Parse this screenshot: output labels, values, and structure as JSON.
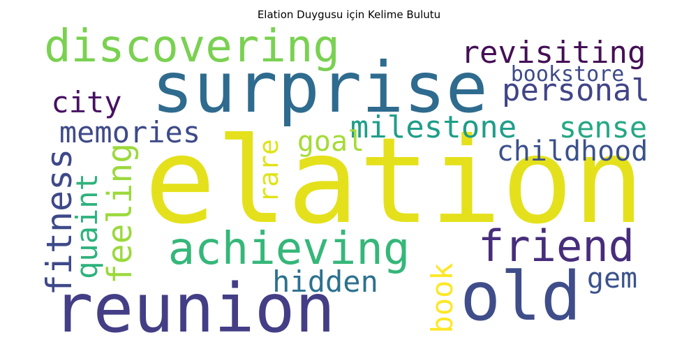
{
  "chart_data": {
    "type": "wordcloud",
    "title": "Elation Duygusu için Kelime Bulutu",
    "words": [
      {
        "text": "elation",
        "weight": 1.0,
        "color": "#e4e11c",
        "orientation": "horizontal"
      },
      {
        "text": "surprise",
        "weight": 0.72,
        "color": "#2e6b8e",
        "orientation": "horizontal"
      },
      {
        "text": "reunion",
        "weight": 0.7,
        "color": "#433e85",
        "orientation": "horizontal"
      },
      {
        "text": "old",
        "weight": 0.68,
        "color": "#3f4d8a",
        "orientation": "horizontal"
      },
      {
        "text": "discovering",
        "weight": 0.44,
        "color": "#7ad151",
        "orientation": "horizontal"
      },
      {
        "text": "achieving",
        "weight": 0.44,
        "color": "#35b779",
        "orientation": "horizontal"
      },
      {
        "text": "friend",
        "weight": 0.44,
        "color": "#472d7b",
        "orientation": "horizontal"
      },
      {
        "text": "fitness",
        "weight": 0.36,
        "color": "#3e4989",
        "orientation": "vertical"
      },
      {
        "text": "feeling",
        "weight": 0.34,
        "color": "#9bd93c",
        "orientation": "vertical"
      },
      {
        "text": "milestone",
        "weight": 0.32,
        "color": "#1f9e89",
        "orientation": "horizontal"
      },
      {
        "text": "revisiting",
        "weight": 0.31,
        "color": "#440f56",
        "orientation": "horizontal"
      },
      {
        "text": "personal",
        "weight": 0.31,
        "color": "#414487",
        "orientation": "horizontal"
      },
      {
        "text": "memories",
        "weight": 0.29,
        "color": "#3e4a89",
        "orientation": "horizontal"
      },
      {
        "text": "city",
        "weight": 0.29,
        "color": "#471063",
        "orientation": "horizontal"
      },
      {
        "text": "quaint",
        "weight": 0.29,
        "color": "#2db27d",
        "orientation": "vertical"
      },
      {
        "text": "sense",
        "weight": 0.29,
        "color": "#26a784",
        "orientation": "horizontal"
      },
      {
        "text": "hidden",
        "weight": 0.29,
        "color": "#2c718e",
        "orientation": "horizontal"
      },
      {
        "text": "book",
        "weight": 0.29,
        "color": "#fde725",
        "orientation": "vertical"
      },
      {
        "text": "childhood",
        "weight": 0.28,
        "color": "#3b518b",
        "orientation": "horizontal"
      },
      {
        "text": "goal",
        "weight": 0.28,
        "color": "#a5db36",
        "orientation": "horizontal"
      },
      {
        "text": "gem",
        "weight": 0.28,
        "color": "#3b528b",
        "orientation": "horizontal"
      },
      {
        "text": "rare",
        "weight": 0.26,
        "color": "#dfe318",
        "orientation": "vertical"
      },
      {
        "text": "bookstore",
        "weight": 0.22,
        "color": "#3e4a89",
        "orientation": "horizontal"
      }
    ]
  }
}
